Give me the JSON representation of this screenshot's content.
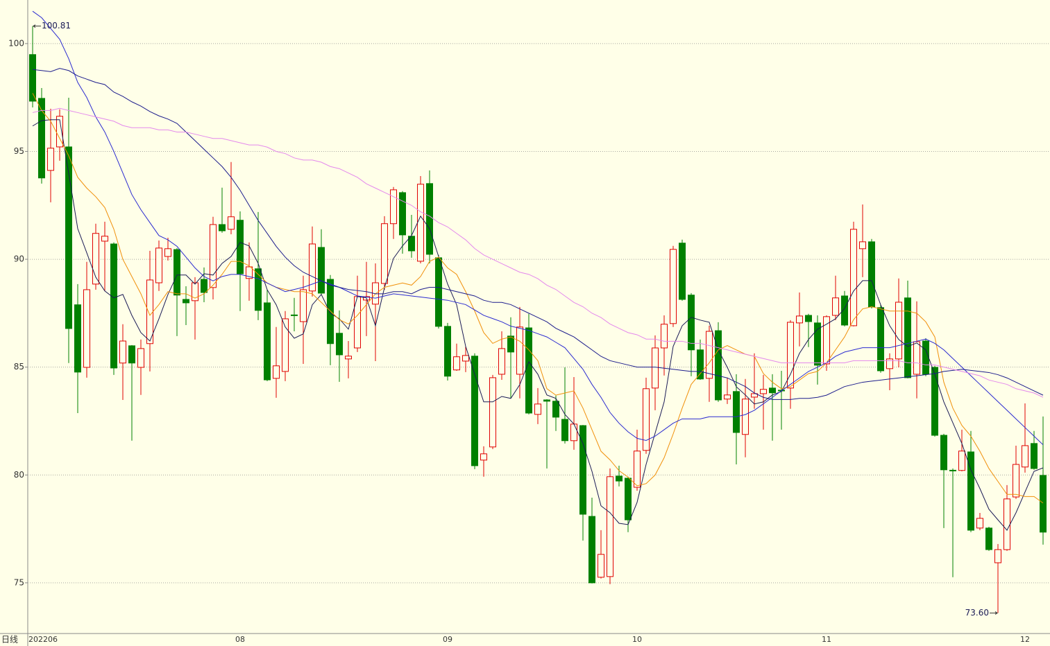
{
  "chart_data": {
    "type": "candlestick",
    "period_label": "日线",
    "categories": [
      "202206",
      null,
      null,
      null,
      null,
      null,
      null,
      null,
      null,
      null,
      null,
      null,
      null,
      null,
      null,
      null,
      null,
      null,
      null,
      null,
      null,
      null,
      null,
      "08",
      null,
      null,
      null,
      null,
      null,
      null,
      null,
      null,
      null,
      null,
      null,
      null,
      null,
      null,
      null,
      null,
      null,
      null,
      null,
      null,
      null,
      null,
      "09",
      null,
      null,
      null,
      null,
      null,
      null,
      null,
      null,
      null,
      null,
      null,
      null,
      null,
      null,
      null,
      null,
      null,
      null,
      null,
      null,
      "10",
      null,
      null,
      null,
      null,
      null,
      null,
      null,
      null,
      null,
      null,
      null,
      null,
      null,
      null,
      null,
      null,
      null,
      null,
      null,
      null,
      "11",
      null,
      null,
      null,
      null,
      null,
      null,
      null,
      null,
      null,
      null,
      null,
      null,
      null,
      null,
      null,
      null,
      null,
      null,
      null,
      null,
      null,
      "12",
      null,
      null
    ],
    "open": [
      99.49,
      97.46,
      94.12,
      95.21,
      95.21,
      87.89,
      84.99,
      88.85,
      90.84,
      90.71,
      85.19,
      85.99,
      84.99,
      86.09,
      88.91,
      90.13,
      90.45,
      88.14,
      88.08,
      89.07,
      88.69,
      91.61,
      91.39,
      91.81,
      89.11,
      89.56,
      87.98,
      84.48,
      84.8,
      87.42,
      87.11,
      88.53,
      90.55,
      89.07,
      86.57,
      85.38,
      85.89,
      88.11,
      87.92,
      88.88,
      91.65,
      93.09,
      91.07,
      89.91,
      93.51,
      90.07,
      86.89,
      84.87,
      85.28,
      85.51,
      80.69,
      81.3,
      84.67,
      86.44,
      84.67,
      86.82,
      82.81,
      83.48,
      83.42,
      82.58,
      81.59,
      82.29,
      78.08,
      75.26,
      75.29,
      79.95,
      79.85,
      79.43,
      81.14,
      84.03,
      85.89,
      87.02,
      90.75,
      88.34,
      85.8,
      84.48,
      86.69,
      83.52,
      83.87,
      81.88,
      83.61,
      83.77,
      84.03,
      83.93,
      84.03,
      87.05,
      87.4,
      87.05,
      85.15,
      87.4,
      88.3,
      86.92,
      90.49,
      90.81,
      87.76,
      84.93,
      85.38,
      88.21,
      84.67,
      86.21,
      84.99,
      81.84,
      80.22,
      80.21,
      81.07,
      77.54,
      77.54,
      75.93,
      76.54,
      78.98,
      80.37,
      81.46,
      79.98
    ],
    "high": [
      100.81,
      97.94,
      96.98,
      96.95,
      97.49,
      88.85,
      89.88,
      91.65,
      91.74,
      90.78,
      86.99,
      86.02,
      86.28,
      90.39,
      90.87,
      91.0,
      90.52,
      88.75,
      89.17,
      89.62,
      91.97,
      93.32,
      94.51,
      92.22,
      90.78,
      92.19,
      88.59,
      86.86,
      87.6,
      88.21,
      89.24,
      91.52,
      91.39,
      89.27,
      87.63,
      86.21,
      89.24,
      89.88,
      89.81,
      92.0,
      93.35,
      93.16,
      92.06,
      93.86,
      94.12,
      90.2,
      87.05,
      86.09,
      85.96,
      85.64,
      81.33,
      84.64,
      86.66,
      87.31,
      87.79,
      87.47,
      84.03,
      83.51,
      83.68,
      84.99,
      84.54,
      82.32,
      78.95,
      77.44,
      80.3,
      80.43,
      79.92,
      82.1,
      84.51,
      86.47,
      87.4,
      90.62,
      90.91,
      88.43,
      86.28,
      86.92,
      87.08,
      84.51,
      84.67,
      84.45,
      85.64,
      84.64,
      84.67,
      84.83,
      87.18,
      88.46,
      87.47,
      87.4,
      87.4,
      89.24,
      88.53,
      91.74,
      92.54,
      90.94,
      87.89,
      85.64,
      89.11,
      89.01,
      88.05,
      86.34,
      85.06,
      81.91,
      80.3,
      82.1,
      82.04,
      78.24,
      77.6,
      76.8,
      79.53,
      81.36,
      83.32,
      82.04,
      82.71
    ],
    "low": [
      97.04,
      93.51,
      92.64,
      94.57,
      85.19,
      82.87,
      84.51,
      88.59,
      88.53,
      84.64,
      83.48,
      81.59,
      83.71,
      84.8,
      88.53,
      89.94,
      86.44,
      86.95,
      86.28,
      88.01,
      88.14,
      91.23,
      91.16,
      87.6,
      88.08,
      87.18,
      84.35,
      83.58,
      84.35,
      86.66,
      85.15,
      88.27,
      88.34,
      85.09,
      84.32,
      84.48,
      85.7,
      86.44,
      85.28,
      88.59,
      90.94,
      90.26,
      90.07,
      89.81,
      89.81,
      86.79,
      84.38,
      84.83,
      84.77,
      80.27,
      79.92,
      81.2,
      84.41,
      83.55,
      83.55,
      82.81,
      82.36,
      80.3,
      82.04,
      81.46,
      81.17,
      76.96,
      74.97,
      75.2,
      74.94,
      79.47,
      77.35,
      79.27,
      80.98,
      83.0,
      84.61,
      86.86,
      88.08,
      84.58,
      84.41,
      83.39,
      83.39,
      83.29,
      80.49,
      80.82,
      83.07,
      82.1,
      81.59,
      82.1,
      83.07,
      85.96,
      85.93,
      84.19,
      84.83,
      87.18,
      86.89,
      86.89,
      89.17,
      87.72,
      84.74,
      83.93,
      84.99,
      84.48,
      83.55,
      84.58,
      81.78,
      77.54,
      75.26,
      80.17,
      77.35,
      77.44,
      76.48,
      73.6,
      76.48,
      78.89,
      80.11,
      80.24,
      76.77
    ],
    "close": [
      97.33,
      93.77,
      95.15,
      96.63,
      86.79,
      84.77,
      88.59,
      91.2,
      91.07,
      84.96,
      86.21,
      85.19,
      85.86,
      89.04,
      90.52,
      90.49,
      88.34,
      87.98,
      88.91,
      88.46,
      91.61,
      91.32,
      91.97,
      89.33,
      89.65,
      87.63,
      84.41,
      85.06,
      87.24,
      87.39,
      88.59,
      90.71,
      88.43,
      86.09,
      85.57,
      85.51,
      88.27,
      88.27,
      88.91,
      91.65,
      93.22,
      91.13,
      90.39,
      93.48,
      90.23,
      86.89,
      84.58,
      85.48,
      85.54,
      80.43,
      80.98,
      84.51,
      85.86,
      85.7,
      86.86,
      82.87,
      83.29,
      83.42,
      82.68,
      81.59,
      82.36,
      78.18,
      75.0,
      76.32,
      79.92,
      79.72,
      77.92,
      81.11,
      84.0,
      85.89,
      86.99,
      90.46,
      88.14,
      85.8,
      84.45,
      86.66,
      83.48,
      83.71,
      81.97,
      83.52,
      83.77,
      83.97,
      83.81,
      83.9,
      87.08,
      87.37,
      87.11,
      85.09,
      87.34,
      88.21,
      86.95,
      91.39,
      90.81,
      87.79,
      84.83,
      85.38,
      88.01,
      84.51,
      86.18,
      84.67,
      81.84,
      80.24,
      80.21,
      81.11,
      77.44,
      77.99,
      76.54,
      76.54,
      78.89,
      80.49,
      81.36,
      80.3,
      77.35
    ],
    "up_color": "#e00000",
    "down_color": "#008000",
    "series": [
      {
        "color": "#1a1a55",
        "values": [
          96.18,
          96.43,
          96.47,
          96.47,
          93.99,
          91.42,
          90.3,
          89.17,
          88.53,
          88.21,
          88.37,
          87.4,
          86.6,
          86.21,
          87.24,
          88.37,
          89.27,
          89.27,
          88.85,
          89.33,
          89.27,
          89.81,
          90.13,
          90.78,
          90.62,
          89.81,
          88.59,
          87.89,
          86.86,
          86.34,
          86.54,
          87.89,
          88.37,
          87.5,
          87.24,
          86.76,
          88.27,
          88.21,
          86.92,
          88.69,
          90.04,
          90.62,
          91.1,
          92.0,
          91.42,
          90.13,
          88.85,
          87.89,
          85.96,
          84.67,
          83.39,
          83.39,
          83.64,
          83.55,
          84.19,
          85.25,
          84.67,
          83.71,
          83.55,
          82.81,
          82.36,
          81.46,
          80.17,
          78.57,
          78.25,
          77.76,
          77.7,
          78.73,
          80.49,
          81.94,
          83.39,
          85.96,
          86.92,
          87.31,
          87.18,
          87.08,
          85.8,
          84.99,
          84.09,
          83.71,
          83.29,
          83.39,
          83.71,
          83.87,
          84.67,
          85.64,
          86.28,
          86.76,
          86.99,
          87.24,
          87.72,
          88.53,
          89.01,
          89.01,
          87.89,
          86.92,
          86.28,
          85.96,
          86.12,
          85.8,
          84.67,
          83.39,
          82.42,
          81.46,
          80.24,
          79.37,
          78.41,
          77.92,
          77.44,
          78.25,
          79.21,
          80.17,
          80.33
        ]
      },
      {
        "color": "#f0900a",
        "values": [
          97.7,
          96.9,
          96.4,
          95.6,
          94.8,
          93.8,
          93.3,
          92.9,
          92.4,
          91.4,
          90.0,
          89.2,
          88.4,
          87.4,
          87.9,
          88.5,
          88.4,
          88.4,
          88.2,
          88.4,
          88.8,
          89.3,
          89.9,
          89.9,
          89.7,
          89.3,
          88.9,
          88.7,
          88.6,
          88.5,
          88.5,
          88.4,
          88.0,
          87.6,
          87.2,
          87.0,
          87.4,
          87.9,
          88.4,
          88.7,
          88.8,
          88.9,
          88.8,
          89.2,
          89.9,
          90.1,
          89.6,
          89.3,
          88.5,
          87.6,
          86.6,
          86.1,
          86.3,
          86.4,
          86.2,
          85.8,
          85.3,
          84.0,
          83.7,
          83.8,
          83.9,
          83.1,
          82.1,
          81.1,
          80.7,
          80.2,
          79.9,
          79.5,
          79.6,
          80.0,
          80.8,
          81.9,
          83.1,
          84.2,
          84.7,
          85.2,
          85.8,
          86.0,
          85.8,
          85.6,
          85.5,
          84.7,
          84.3,
          84.0,
          84.1,
          84.4,
          84.7,
          84.8,
          85.2,
          85.8,
          86.4,
          87.2,
          87.7,
          87.8,
          87.7,
          87.6,
          87.6,
          87.6,
          87.5,
          87.1,
          86.4,
          84.3,
          83.1,
          82.3,
          81.8,
          81.1,
          80.3,
          79.7,
          79.1,
          79.1,
          79.0,
          79.0,
          78.7
        ]
      },
      {
        "color": "#2a2ad0",
        "values": [
          101.5,
          101.2,
          100.7,
          100.2,
          99.3,
          98.2,
          97.5,
          96.6,
          95.9,
          95.0,
          94.0,
          93.0,
          92.3,
          91.7,
          91.1,
          90.9,
          90.6,
          90.1,
          89.6,
          89.2,
          89.0,
          89.2,
          89.3,
          89.3,
          89.2,
          89.1,
          88.9,
          88.7,
          88.5,
          88.6,
          88.7,
          88.85,
          89.0,
          88.85,
          88.7,
          88.5,
          88.3,
          88.25,
          88.2,
          88.3,
          88.4,
          88.35,
          88.3,
          88.25,
          88.2,
          88.15,
          88.1,
          88.0,
          87.9,
          87.65,
          87.4,
          87.25,
          87.1,
          86.9,
          86.8,
          86.7,
          86.55,
          86.4,
          86.15,
          85.9,
          85.4,
          84.9,
          84.2,
          83.6,
          82.9,
          82.4,
          82.0,
          81.7,
          81.6,
          81.8,
          82.1,
          82.4,
          82.6,
          82.6,
          82.6,
          82.7,
          82.7,
          82.7,
          82.7,
          82.8,
          83.0,
          83.3,
          83.6,
          83.9,
          84.2,
          84.5,
          84.8,
          85.0,
          85.2,
          85.5,
          85.7,
          85.8,
          85.9,
          85.9,
          85.9,
          85.9,
          86.0,
          86.1,
          86.2,
          86.3,
          86.1,
          85.8,
          85.4,
          85.0,
          84.6,
          84.2,
          83.8,
          83.4,
          83.0,
          82.6,
          82.2,
          81.8,
          81.4
        ]
      },
      {
        "color": "#1c1c8c",
        "values": [
          98.8,
          98.75,
          98.7,
          98.85,
          98.75,
          98.5,
          98.35,
          98.2,
          98.1,
          97.75,
          97.55,
          97.3,
          97.1,
          96.85,
          96.65,
          96.5,
          96.3,
          95.9,
          95.5,
          95.1,
          94.7,
          94.3,
          93.8,
          93.2,
          92.5,
          91.8,
          91.2,
          90.6,
          90.1,
          89.7,
          89.4,
          89.2,
          89.0,
          88.8,
          88.7,
          88.6,
          88.55,
          88.5,
          88.4,
          88.4,
          88.5,
          88.5,
          88.4,
          88.6,
          88.7,
          88.7,
          88.6,
          88.5,
          88.4,
          88.3,
          88.1,
          88.0,
          88.0,
          87.9,
          87.7,
          87.5,
          87.3,
          87.1,
          86.8,
          86.6,
          86.4,
          86.1,
          85.8,
          85.5,
          85.3,
          85.2,
          85.1,
          85.0,
          85.0,
          85.0,
          84.95,
          84.9,
          84.85,
          84.8,
          84.8,
          84.7,
          84.6,
          84.5,
          84.3,
          84.1,
          83.8,
          83.6,
          83.5,
          83.5,
          83.5,
          83.55,
          83.55,
          83.6,
          83.7,
          83.9,
          84.1,
          84.2,
          84.3,
          84.35,
          84.4,
          84.45,
          84.5,
          84.55,
          84.6,
          84.65,
          84.7,
          84.8,
          84.85,
          84.9,
          84.85,
          84.8,
          84.75,
          84.65,
          84.5,
          84.3,
          84.1,
          83.9,
          83.7
        ]
      },
      {
        "color": "#e488ec",
        "values": [
          96.8,
          96.9,
          96.9,
          97.0,
          96.9,
          96.8,
          96.7,
          96.6,
          96.5,
          96.4,
          96.2,
          96.1,
          96.1,
          96.1,
          96.0,
          96.0,
          95.9,
          95.9,
          95.8,
          95.7,
          95.6,
          95.6,
          95.5,
          95.4,
          95.3,
          95.3,
          95.2,
          95.0,
          94.9,
          94.7,
          94.6,
          94.6,
          94.5,
          94.3,
          94.2,
          94.0,
          93.8,
          93.5,
          93.3,
          93.1,
          92.9,
          92.7,
          92.5,
          92.2,
          92.0,
          91.7,
          91.5,
          91.2,
          90.9,
          90.5,
          90.2,
          90.0,
          89.8,
          89.6,
          89.4,
          89.3,
          89.1,
          88.8,
          88.6,
          88.3,
          88.0,
          87.8,
          87.5,
          87.3,
          87.0,
          86.8,
          86.6,
          86.5,
          86.3,
          86.3,
          86.2,
          86.2,
          86.2,
          86.1,
          86.1,
          86.0,
          85.9,
          85.8,
          85.7,
          85.6,
          85.5,
          85.4,
          85.3,
          85.2,
          85.2,
          85.2,
          85.2,
          85.2,
          85.2,
          85.2,
          85.2,
          85.3,
          85.3,
          85.3,
          85.3,
          85.3,
          85.3,
          85.2,
          85.2,
          85.1,
          85.1,
          85.0,
          84.9,
          84.8,
          84.7,
          84.6,
          84.4,
          84.3,
          84.2,
          84.0,
          83.9,
          83.8,
          83.6
        ]
      }
    ],
    "annotations": [
      100.81,
      {
        "value": 73.6,
        "label": "73.60"
      }
    ],
    "ylim": [
      72.65,
      102.02
    ],
    "yticks": [
      75,
      80,
      85,
      90,
      95,
      100
    ],
    "grid": true
  }
}
